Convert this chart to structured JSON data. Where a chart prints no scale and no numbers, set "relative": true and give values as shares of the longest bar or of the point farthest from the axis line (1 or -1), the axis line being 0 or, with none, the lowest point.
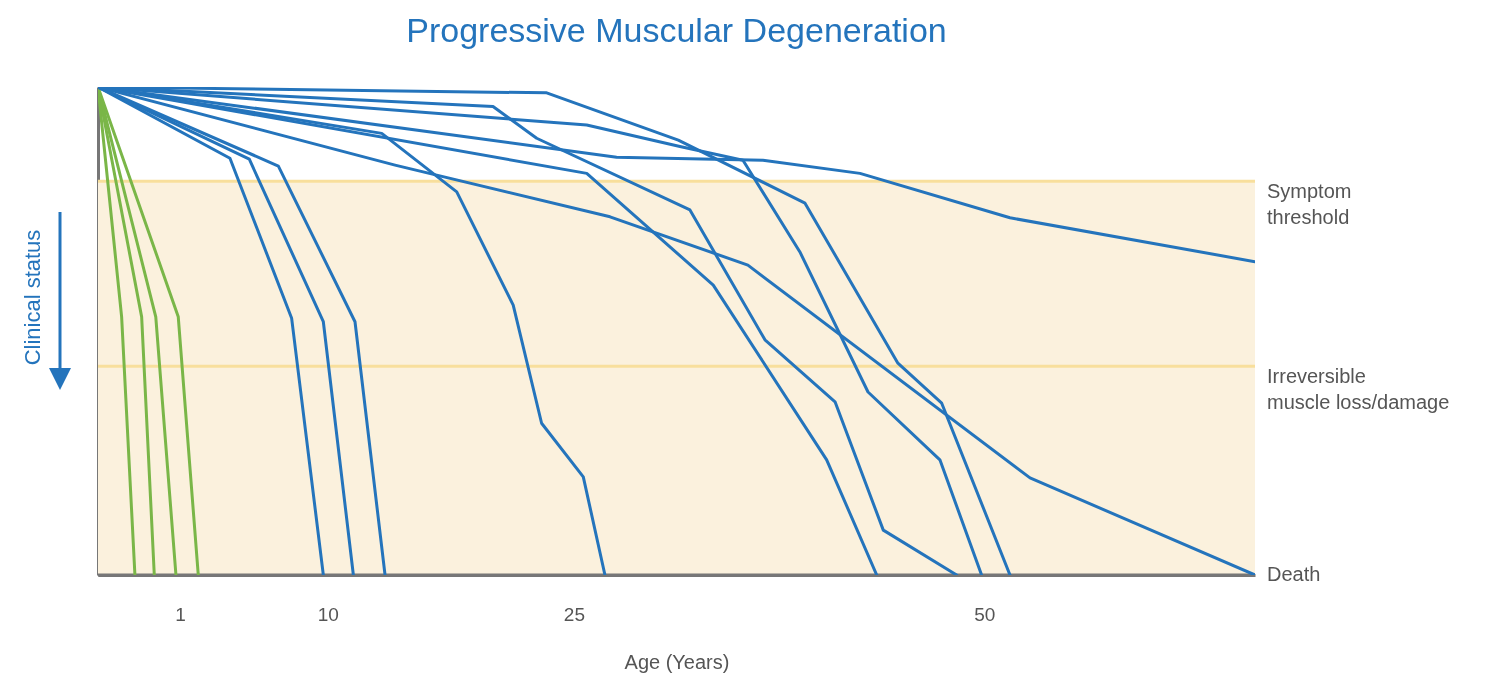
{
  "chart_data": {
    "type": "line",
    "title": "Progressive Muscular Degeneration",
    "xlabel": "Age (Years)",
    "ylabel": "Clinical status",
    "relative": true,
    "xlim": [
      -4,
      66.5
    ],
    "xticks": [
      1,
      10,
      25,
      50
    ],
    "line_style": "solid",
    "series": [
      {
        "color": "#7ab648",
        "x": [
          -4,
          -2.56,
          -1.75
        ],
        "values": [
          1,
          0.529,
          0
        ]
      },
      {
        "color": "#7ab648",
        "x": [
          -4,
          -1.34,
          -0.57
        ],
        "values": [
          1,
          0.529,
          0
        ]
      },
      {
        "color": "#7ab648",
        "x": [
          -4,
          -0.48,
          0.75
        ],
        "values": [
          1,
          0.529,
          0
        ]
      },
      {
        "color": "#7ab648",
        "x": [
          -4,
          0.89,
          2.11
        ],
        "values": [
          1,
          0.529,
          0
        ]
      },
      {
        "color": "#2474bc",
        "x": [
          -4,
          4.04,
          7.8,
          9.73
        ],
        "values": [
          1,
          0.854,
          0.526,
          0
        ]
      },
      {
        "color": "#2474bc",
        "x": [
          -4,
          5.22,
          9.73,
          11.56
        ],
        "values": [
          1,
          0.852,
          0.519,
          0
        ]
      },
      {
        "color": "#2474bc",
        "x": [
          -4,
          6.99,
          11.66,
          13.49
        ],
        "values": [
          1,
          0.838,
          0.519,
          0
        ]
      },
      {
        "color": "#2474bc",
        "x": [
          -4,
          13.29,
          17.86,
          21.3,
          23.03,
          25.57,
          26.89
        ],
        "values": [
          1,
          0.905,
          0.785,
          0.553,
          0.311,
          0.201,
          0
        ]
      },
      {
        "color": "#2474bc",
        "x": [
          -4,
          23.34,
          31.36,
          39.08,
          44.74,
          47.41,
          51.57
        ],
        "values": [
          1,
          0.988,
          0.891,
          0.762,
          0.434,
          0.352,
          0
        ]
      },
      {
        "color": "#2474bc",
        "x": [
          -4,
          20.07,
          22.73,
          32.07,
          36.64,
          40.91,
          43.85,
          48.32
        ],
        "values": [
          1,
          0.96,
          0.895,
          0.748,
          0.482,
          0.355,
          0.092,
          0
        ]
      },
      {
        "color": "#2474bc",
        "x": [
          -4,
          25.78,
          31.46,
          35.3,
          38.77,
          42.92,
          47.3,
          49.84
        ],
        "values": [
          1,
          0.922,
          0.878,
          0.85,
          0.662,
          0.375,
          0.236,
          0
        ]
      },
      {
        "color": "#2474bc",
        "x": [
          -4,
          27.6,
          36.52,
          42.43,
          51.57,
          66.5
        ],
        "values": [
          1,
          0.856,
          0.85,
          0.823,
          0.732,
          0.642
        ]
      },
      {
        "color": "#2474bc",
        "x": [
          -4,
          25.78,
          33.49,
          40.4,
          43.45
        ],
        "values": [
          1,
          0.823,
          0.594,
          0.236,
          0
        ]
      },
      {
        "color": "#2474bc",
        "x": [
          -4,
          14.1,
          27.2,
          35.6,
          52.79,
          66.5
        ],
        "values": [
          1,
          0.84,
          0.734,
          0.635,
          0.199,
          0
        ]
      }
    ],
    "ref_lines": [
      {
        "axis": "y",
        "value": 0.807,
        "label": "Symptom threshold",
        "color": "#f8df9c"
      },
      {
        "axis": "y",
        "value": 0.428,
        "label": "Irreversible muscle loss/damage",
        "color": "#f8df9c"
      },
      {
        "axis": "y",
        "value": 0,
        "label": "Death",
        "color": "#777777"
      }
    ],
    "bands": [
      {
        "axis": "y",
        "from": 0,
        "to": 0.807,
        "color": "#fbf1dd"
      }
    ]
  }
}
